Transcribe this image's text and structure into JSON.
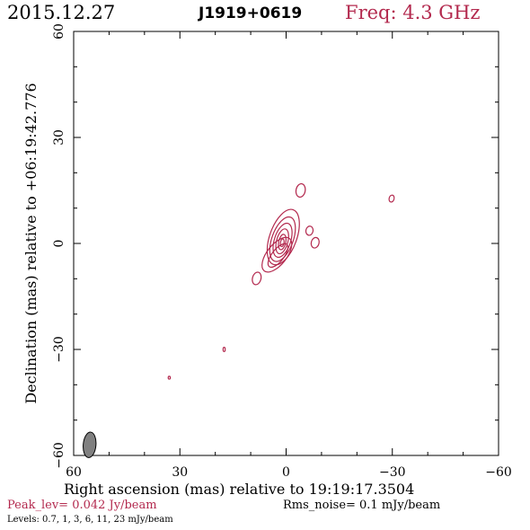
{
  "header": {
    "date": "2015.12.27",
    "source": "J1919+0619",
    "freq": "Freq: 4.3 GHz"
  },
  "footer": {
    "peak": "Peak_lev=  0.042 Jy/beam",
    "rms": "Rms_noise=   0.1 mJy/beam",
    "levels": "Levels: 0.7,    1,    3,    6,   11,   23 mJy/beam"
  },
  "colors": {
    "contour": "#b3294e",
    "beam": "#808080",
    "axis": "#000000"
  },
  "chart_data": {
    "type": "contour",
    "xlabel": "Right ascension (mas) relative to 19:19:17.3504",
    "ylabel": "Declination (mas) relative to +06:19:42.776",
    "xlim": [
      60,
      -60
    ],
    "ylim": [
      -60,
      60
    ],
    "xticks": [
      60,
      30,
      0,
      -30,
      -60
    ],
    "yticks": [
      -60,
      -30,
      0,
      30,
      60
    ],
    "xtick_labels": [
      "60",
      "30",
      "0",
      "−30",
      "−60"
    ],
    "ytick_labels": [
      "−60",
      "−30",
      "0",
      "30",
      "60"
    ],
    "core": {
      "x": 0.5,
      "y": 0
    },
    "core_contours": [
      {
        "dx": 0.3,
        "dy": 1.8,
        "rx": 3.8,
        "ry": 8.2,
        "rot": 20
      },
      {
        "dx": 0.5,
        "dy": 1.2,
        "rx": 3.0,
        "ry": 6.6,
        "rot": 20
      },
      {
        "dx": 0.5,
        "dy": 0.9,
        "rx": 2.3,
        "ry": 5.0,
        "rot": 18
      },
      {
        "dx": 0.6,
        "dy": 0.6,
        "rx": 1.6,
        "ry": 3.6,
        "rot": 15
      },
      {
        "dx": 0.6,
        "dy": 0.4,
        "rx": 1.0,
        "ry": 2.2,
        "rot": 12
      },
      {
        "dx": 0.6,
        "dy": 0.2,
        "rx": 0.5,
        "ry": 1.1,
        "rot": 10
      }
    ],
    "extension_contours": [
      {
        "x": 2.6,
        "y": -3.2,
        "rx": 2.8,
        "ry": 5.8,
        "rot": 38
      },
      {
        "x": 2.3,
        "y": -3.4,
        "rx": 1.7,
        "ry": 4.0,
        "rot": 38
      }
    ],
    "components": [
      {
        "x": -4.1,
        "y": 15.0,
        "rx": 1.3,
        "ry": 1.9,
        "rot": 10
      },
      {
        "x": -6.6,
        "y": 3.6,
        "rx": 1.0,
        "ry": 1.3,
        "rot": 10
      },
      {
        "x": -8.2,
        "y": 0.2,
        "rx": 1.1,
        "ry": 1.5,
        "rot": 15
      },
      {
        "x": 8.3,
        "y": -9.9,
        "rx": 1.2,
        "ry": 1.8,
        "rot": 15
      },
      {
        "x": -29.8,
        "y": 12.7,
        "rx": 0.7,
        "ry": 1.0,
        "rot": 15
      },
      {
        "x": 17.5,
        "y": -30.0,
        "rx": 0.3,
        "ry": 0.6,
        "rot": 0
      },
      {
        "x": 33.0,
        "y": -38.0,
        "rx": 0.3,
        "ry": 0.4,
        "rot": 0
      }
    ],
    "beam": {
      "x": 55.5,
      "y": -57.0,
      "rx": 1.8,
      "ry": 3.6,
      "rot": 5
    }
  }
}
